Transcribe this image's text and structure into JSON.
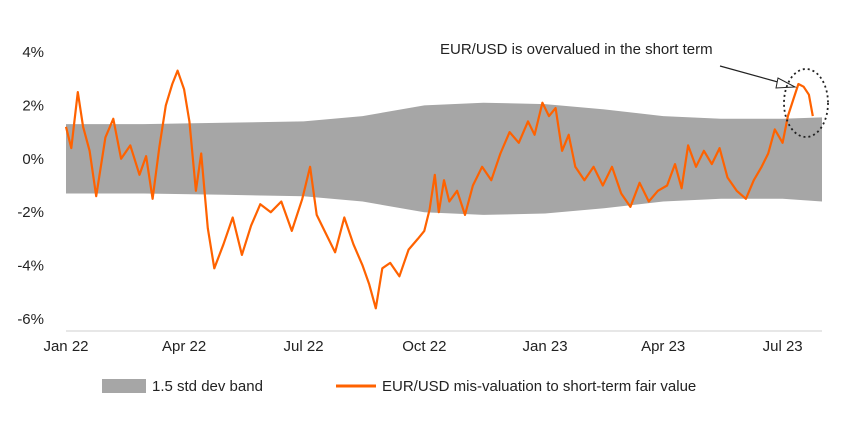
{
  "chart_data": {
    "type": "line",
    "title": "",
    "xlabel": "",
    "ylabel": "",
    "ylim": [
      -6,
      4
    ],
    "yticks": [
      {
        "value": 4,
        "label": "4%"
      },
      {
        "value": 2,
        "label": "2%"
      },
      {
        "value": 0,
        "label": "0%"
      },
      {
        "value": -2,
        "label": "-2%"
      },
      {
        "value": -4,
        "label": "-4%"
      },
      {
        "value": -6,
        "label": "-6%"
      }
    ],
    "xrange": [
      "2022-01-01",
      "2023-07-31"
    ],
    "xticks": [
      {
        "date": "2022-01-01",
        "label": "Jan 22"
      },
      {
        "date": "2022-04-01",
        "label": "Apr 22"
      },
      {
        "date": "2022-07-01",
        "label": "Jul 22"
      },
      {
        "date": "2022-10-01",
        "label": "Oct 22"
      },
      {
        "date": "2023-01-01",
        "label": "Jan 23"
      },
      {
        "date": "2023-04-01",
        "label": "Apr 23"
      },
      {
        "date": "2023-07-01",
        "label": "Jul 23"
      }
    ],
    "grid": false,
    "legend_position": "bottom",
    "annotation": "EUR/USD is overvalued in the short term",
    "band": {
      "name": "1.5 std dev band",
      "color": "#a6a6a6",
      "x": [
        "2022-01-01",
        "2022-03-01",
        "2022-05-01",
        "2022-07-01",
        "2022-08-15",
        "2022-10-01",
        "2022-11-15",
        "2023-01-01",
        "2023-02-15",
        "2023-04-01",
        "2023-05-15",
        "2023-07-01",
        "2023-07-31"
      ],
      "upper": [
        1.3,
        1.3,
        1.35,
        1.4,
        1.6,
        2.0,
        2.1,
        2.05,
        1.85,
        1.6,
        1.5,
        1.5,
        1.55
      ],
      "lower": [
        -1.3,
        -1.3,
        -1.35,
        -1.4,
        -1.6,
        -2.0,
        -2.1,
        -2.05,
        -1.85,
        -1.6,
        -1.5,
        -1.5,
        -1.6
      ]
    },
    "series": [
      {
        "name": "EUR/USD mis-valuation to short-term fair value",
        "color": "#ff6200",
        "points": [
          [
            "2022-01-01",
            1.2
          ],
          [
            "2022-01-05",
            0.4
          ],
          [
            "2022-01-10",
            2.5
          ],
          [
            "2022-01-14",
            1.2
          ],
          [
            "2022-01-19",
            0.3
          ],
          [
            "2022-01-24",
            -1.4
          ],
          [
            "2022-01-31",
            0.8
          ],
          [
            "2022-02-06",
            1.5
          ],
          [
            "2022-02-12",
            0.0
          ],
          [
            "2022-02-19",
            0.5
          ],
          [
            "2022-02-26",
            -0.6
          ],
          [
            "2022-03-03",
            0.1
          ],
          [
            "2022-03-08",
            -1.5
          ],
          [
            "2022-03-13",
            0.4
          ],
          [
            "2022-03-18",
            2.0
          ],
          [
            "2022-03-23",
            2.8
          ],
          [
            "2022-03-27",
            3.3
          ],
          [
            "2022-04-01",
            2.6
          ],
          [
            "2022-04-05",
            1.4
          ],
          [
            "2022-04-10",
            -1.2
          ],
          [
            "2022-04-14",
            0.2
          ],
          [
            "2022-04-19",
            -2.6
          ],
          [
            "2022-04-24",
            -4.1
          ],
          [
            "2022-05-01",
            -3.2
          ],
          [
            "2022-05-08",
            -2.2
          ],
          [
            "2022-05-15",
            -3.6
          ],
          [
            "2022-05-22",
            -2.5
          ],
          [
            "2022-05-29",
            -1.7
          ],
          [
            "2022-06-06",
            -2.0
          ],
          [
            "2022-06-14",
            -1.6
          ],
          [
            "2022-06-22",
            -2.7
          ],
          [
            "2022-06-30",
            -1.5
          ],
          [
            "2022-07-06",
            -0.3
          ],
          [
            "2022-07-11",
            -2.1
          ],
          [
            "2022-07-18",
            -2.8
          ],
          [
            "2022-07-25",
            -3.5
          ],
          [
            "2022-08-01",
            -2.2
          ],
          [
            "2022-08-08",
            -3.2
          ],
          [
            "2022-08-15",
            -4.0
          ],
          [
            "2022-08-20",
            -4.7
          ],
          [
            "2022-08-25",
            -5.6
          ],
          [
            "2022-08-30",
            -4.1
          ],
          [
            "2022-09-05",
            -3.9
          ],
          [
            "2022-09-12",
            -4.4
          ],
          [
            "2022-09-19",
            -3.4
          ],
          [
            "2022-09-26",
            -3.0
          ],
          [
            "2022-10-01",
            -2.7
          ],
          [
            "2022-10-05",
            -1.9
          ],
          [
            "2022-10-09",
            -0.6
          ],
          [
            "2022-10-12",
            -2.0
          ],
          [
            "2022-10-16",
            -0.8
          ],
          [
            "2022-10-20",
            -1.6
          ],
          [
            "2022-10-26",
            -1.2
          ],
          [
            "2022-11-01",
            -2.1
          ],
          [
            "2022-11-07",
            -1.0
          ],
          [
            "2022-11-14",
            -0.3
          ],
          [
            "2022-11-21",
            -0.8
          ],
          [
            "2022-11-28",
            0.2
          ],
          [
            "2022-12-05",
            1.0
          ],
          [
            "2022-12-12",
            0.6
          ],
          [
            "2022-12-19",
            1.4
          ],
          [
            "2022-12-24",
            0.9
          ],
          [
            "2022-12-30",
            2.1
          ],
          [
            "2023-01-04",
            1.6
          ],
          [
            "2023-01-09",
            1.9
          ],
          [
            "2023-01-14",
            0.3
          ],
          [
            "2023-01-19",
            0.9
          ],
          [
            "2023-01-24",
            -0.3
          ],
          [
            "2023-01-31",
            -0.8
          ],
          [
            "2023-02-07",
            -0.3
          ],
          [
            "2023-02-14",
            -1.0
          ],
          [
            "2023-02-21",
            -0.3
          ],
          [
            "2023-02-28",
            -1.3
          ],
          [
            "2023-03-07",
            -1.8
          ],
          [
            "2023-03-14",
            -0.9
          ],
          [
            "2023-03-21",
            -1.6
          ],
          [
            "2023-03-28",
            -1.2
          ],
          [
            "2023-04-04",
            -1.0
          ],
          [
            "2023-04-10",
            -0.2
          ],
          [
            "2023-04-15",
            -1.1
          ],
          [
            "2023-04-20",
            0.5
          ],
          [
            "2023-04-26",
            -0.3
          ],
          [
            "2023-05-02",
            0.3
          ],
          [
            "2023-05-08",
            -0.2
          ],
          [
            "2023-05-14",
            0.4
          ],
          [
            "2023-05-20",
            -0.7
          ],
          [
            "2023-05-27",
            -1.2
          ],
          [
            "2023-06-03",
            -1.5
          ],
          [
            "2023-06-09",
            -0.8
          ],
          [
            "2023-06-15",
            -0.3
          ],
          [
            "2023-06-20",
            0.2
          ],
          [
            "2023-06-25",
            1.1
          ],
          [
            "2023-07-01",
            0.6
          ],
          [
            "2023-07-05",
            1.6
          ],
          [
            "2023-07-09",
            2.2
          ],
          [
            "2023-07-13",
            2.8
          ],
          [
            "2023-07-17",
            2.7
          ],
          [
            "2023-07-21",
            2.4
          ],
          [
            "2023-07-24",
            1.6
          ]
        ]
      }
    ]
  }
}
